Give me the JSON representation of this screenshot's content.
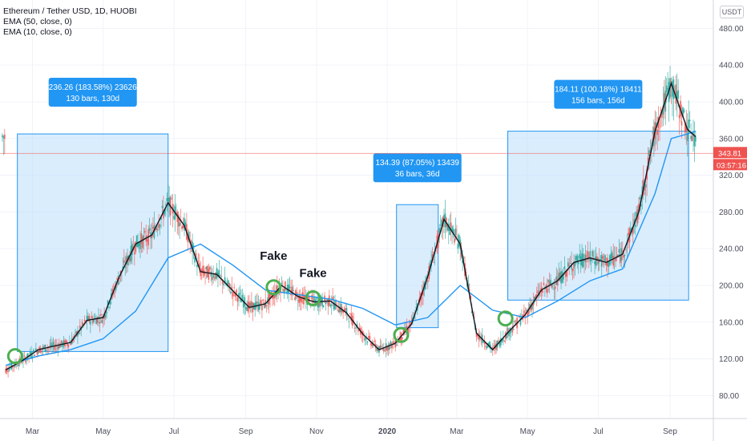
{
  "header": {
    "symbol_line": "Ethereum / Tether USD, 1D, HUOBI",
    "indicators": [
      "EMA (50, close, 0)",
      "EMA (10, close, 0)"
    ],
    "currency_button": "USDT"
  },
  "price_tags": {
    "last_price": "343.81",
    "countdown": "03:57:16"
  },
  "colors": {
    "up": "#26a69a",
    "down": "#ef5350",
    "ema50": "#2196f3",
    "ema10": "#131722",
    "box_fill": "#bbdefb",
    "box_stroke": "#2196f3",
    "marker": "#4caf50",
    "last_price_tag": "#ef5350"
  },
  "annotations": {
    "measures": [
      {
        "line1": "236.26 (183.58%) 23626",
        "line2": "130 bars, 130d"
      },
      {
        "line1": "134.39 (87.05%) 13439",
        "line2": "36 bars, 36d"
      },
      {
        "line1": "184.11 (100.18%) 18411",
        "line2": "156 bars, 156d"
      }
    ],
    "labels": [
      "Fake",
      "Fake"
    ]
  },
  "chart_data": {
    "type": "line",
    "title": "Ethereum / Tether USD, 1D, HUOBI",
    "y_axis": {
      "ylim": [
        55,
        510
      ],
      "ticks": [
        "80.00",
        "120.00",
        "160.00",
        "200.00",
        "240.00",
        "280.00",
        "320.00",
        "360.00",
        "400.00",
        "440.00",
        "480.00"
      ],
      "position": "right"
    },
    "x_axis": {
      "ticks": [
        "Mar",
        "May",
        "Jul",
        "Sep",
        "Nov",
        "2020",
        "Mar",
        "May",
        "Jul",
        "Sep"
      ]
    },
    "grid": true,
    "series": [
      {
        "name": "EMA (10, close, 0)",
        "x": [
          "2019-02-06",
          "2019-02-20",
          "2019-03-06",
          "2019-03-20",
          "2019-04-03",
          "2019-04-17",
          "2019-05-01",
          "2019-05-15",
          "2019-05-29",
          "2019-06-12",
          "2019-06-26",
          "2019-07-10",
          "2019-07-24",
          "2019-08-07",
          "2019-08-21",
          "2019-09-04",
          "2019-09-18",
          "2019-10-02",
          "2019-10-16",
          "2019-10-30",
          "2019-11-13",
          "2019-11-27",
          "2019-12-11",
          "2019-12-25",
          "2020-01-08",
          "2020-01-22",
          "2020-02-05",
          "2020-02-19",
          "2020-03-04",
          "2020-03-18",
          "2020-04-01",
          "2020-04-15",
          "2020-04-29",
          "2020-05-13",
          "2020-05-27",
          "2020-06-10",
          "2020-06-24",
          "2020-07-08",
          "2020-07-22",
          "2020-08-05",
          "2020-08-19",
          "2020-09-02",
          "2020-09-16",
          "2020-09-23"
        ],
        "values": [
          108,
          118,
          130,
          134,
          138,
          162,
          165,
          210,
          245,
          255,
          290,
          265,
          215,
          212,
          194,
          176,
          180,
          200,
          188,
          182,
          183,
          170,
          147,
          130,
          137,
          158,
          210,
          272,
          245,
          148,
          130,
          150,
          168,
          195,
          205,
          225,
          230,
          225,
          234,
          280,
          368,
          420,
          370,
          362
        ]
      },
      {
        "name": "EMA (50, close, 0)",
        "x": [
          "2019-02-06",
          "2019-03-06",
          "2019-04-03",
          "2019-05-01",
          "2019-05-29",
          "2019-06-26",
          "2019-07-24",
          "2019-08-21",
          "2019-09-18",
          "2019-10-16",
          "2019-11-13",
          "2019-12-11",
          "2020-01-08",
          "2020-02-05",
          "2020-03-04",
          "2020-04-01",
          "2020-04-29",
          "2020-05-27",
          "2020-06-24",
          "2020-07-22",
          "2020-08-19",
          "2020-09-02",
          "2020-09-16",
          "2020-09-23"
        ],
        "values": [
          113,
          123,
          130,
          142,
          172,
          230,
          245,
          222,
          195,
          190,
          185,
          175,
          157,
          165,
          200,
          173,
          165,
          183,
          205,
          218,
          300,
          360,
          365,
          368
        ]
      }
    ],
    "measure_ranges": [
      {
        "from": "2019-02-16",
        "to": "2019-06-26",
        "low": 128,
        "high": 365,
        "change": "236.26 (183.58%)",
        "bars": 130
      },
      {
        "from": "2020-01-09",
        "to": "2020-02-14",
        "low": 154,
        "high": 288,
        "change": "134.39 (87.05%)",
        "bars": 36
      },
      {
        "from": "2020-04-14",
        "to": "2020-09-17",
        "low": 184,
        "high": 368,
        "change": "184.11 (100.18%)",
        "bars": 156
      }
    ],
    "markers": [
      {
        "date": "2019-02-14",
        "price": 123
      },
      {
        "date": "2019-09-25",
        "price": 198
      },
      {
        "date": "2019-10-29",
        "price": 186,
        "label": "Fake"
      },
      {
        "date": "2020-01-13",
        "price": 146
      },
      {
        "date": "2020-04-12",
        "price": 164
      }
    ],
    "fake_labels": [
      {
        "date": "2019-09-25",
        "price": 228,
        "label": "Fake"
      },
      {
        "date": "2019-10-29",
        "price": 209,
        "label": "Fake"
      }
    ],
    "last_price": 343.81
  }
}
